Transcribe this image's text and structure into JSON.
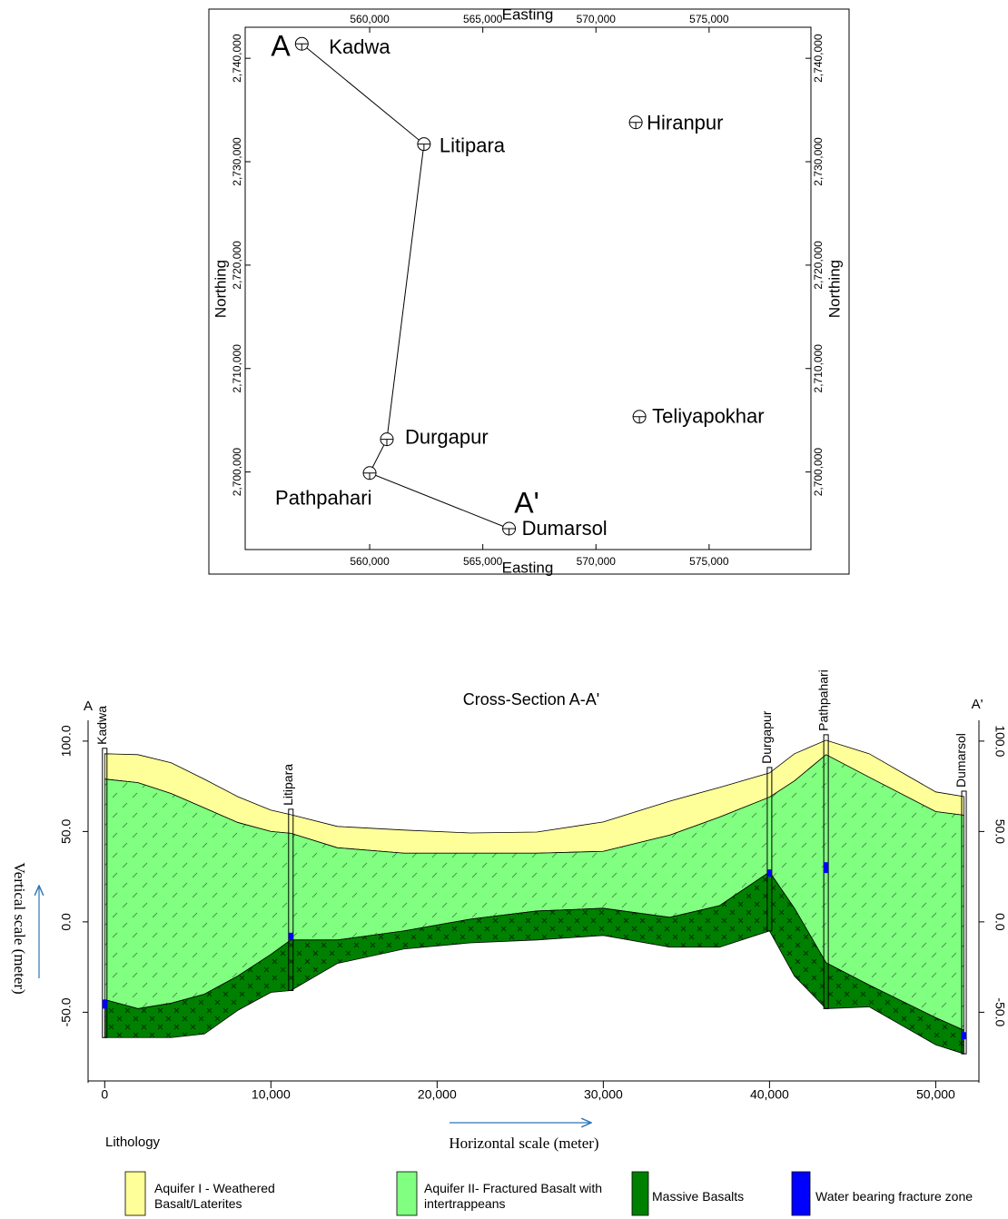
{
  "chart_data": [
    {
      "type": "map",
      "xlabel": "Easting",
      "ylabel": "Northing",
      "xlim": [
        554500,
        579500
      ],
      "ylim": [
        2692500,
        2743000
      ],
      "xticks": [
        {
          "value": 560000,
          "label": "560,000"
        },
        {
          "value": 565000,
          "label": "565,000"
        },
        {
          "value": 570000,
          "label": "570,000"
        },
        {
          "value": 575000,
          "label": "575,000"
        }
      ],
      "yticks": [
        {
          "value": 2700000,
          "label": "2,700,000"
        },
        {
          "value": 2710000,
          "label": "2,710,000"
        },
        {
          "value": 2720000,
          "label": "2,720,000"
        },
        {
          "value": 2730000,
          "label": "2,730,000"
        },
        {
          "value": 2740000,
          "label": "2,740,000"
        }
      ],
      "points": {
        "labels": [
          "Kadwa",
          "Litipara",
          "Hiranpur",
          "Durgapur",
          "Pathpahari",
          "Teliyapokhar",
          "Dumarsol"
        ],
        "x": [
          557000,
          562400,
          571760,
          560760,
          560000,
          571920,
          566160
        ],
        "y": [
          2741400,
          2731700,
          2733800,
          2703160,
          2699900,
          2705340,
          2694520
        ]
      },
      "section_line": {
        "x": [
          557000,
          562400,
          560760,
          560000,
          566160
        ],
        "y": [
          2741400,
          2731700,
          2703160,
          2699900,
          2694520
        ]
      },
      "annotations": [
        "A",
        "A'"
      ]
    },
    {
      "type": "cross-section",
      "title": "Cross-Section A-A'",
      "xlabel": "Horizontal scale (meter)",
      "ylabel": "Vertical scale (meter)",
      "xlim": [
        -1000,
        52600
      ],
      "ylim": [
        -89,
        111.5
      ],
      "xticks": [
        0,
        {
          "value": 10000,
          "label": "10,000"
        },
        {
          "value": 20000,
          "label": "20,000"
        },
        {
          "value": 30000,
          "label": "30,000"
        },
        {
          "value": 40000,
          "label": "40,000"
        },
        {
          "value": 50000,
          "label": "50,000"
        }
      ],
      "yticks": [
        {
          "value": -50,
          "label": "-50.0"
        },
        {
          "value": 0,
          "label": "0.0"
        },
        {
          "value": 50,
          "label": "50.0"
        },
        {
          "value": 100,
          "label": "100.0"
        }
      ],
      "annotations": [
        "A",
        "A'"
      ],
      "legend_title": "Lithology",
      "x": [
        0,
        2000,
        4000,
        6000,
        8000,
        10000,
        11200,
        14000,
        18000,
        22000,
        26000,
        30000,
        34000,
        37000,
        40000,
        41500,
        43400,
        46000,
        50000,
        51700
      ],
      "series": [
        {
          "name": "Aquifer I - Weathered Basalt/Laterites",
          "color": "#ffff99",
          "top": [
            93,
            92.5,
            88,
            78.9,
            69.3,
            61.8,
            59.3,
            52.8,
            50.8,
            49.2,
            49.7,
            55.3,
            66.8,
            74.4,
            82.4,
            93,
            100.5,
            93,
            71.9,
            69.3
          ],
          "bottom": [
            79,
            77,
            71,
            63,
            55,
            50,
            49,
            41,
            38,
            38,
            38,
            39,
            48,
            58,
            69,
            78,
            92.5,
            80,
            61,
            59
          ]
        },
        {
          "name": "Aquifer II- Fractured Basalt with intertrappeans",
          "color": "#80ff80",
          "top": [
            79,
            77,
            71,
            63,
            55,
            50,
            49,
            41,
            38,
            38,
            38,
            39,
            48,
            58,
            69,
            78,
            92.5,
            80,
            61,
            59
          ],
          "bottom": [
            -43,
            -48,
            -45,
            -40,
            -30,
            -18,
            -10,
            -10,
            -5,
            1.5,
            6,
            7.5,
            2.5,
            9,
            27.6,
            7.5,
            -22.6,
            -35,
            -53,
            -60
          ]
        },
        {
          "name": "Massive Basalts",
          "color": "#008000",
          "top": [
            -43,
            -48,
            -45,
            -40,
            -30,
            -18,
            -10,
            -10,
            -5,
            1.5,
            6,
            7.5,
            2.5,
            9,
            27.6,
            7.5,
            -22.6,
            -35,
            -53,
            -60
          ],
          "bottom": [
            -64,
            -64,
            -64,
            -62,
            -49,
            -39,
            -38,
            -23,
            -15,
            -11.6,
            -10,
            -7.5,
            -14,
            -14,
            -5,
            -30,
            -48,
            -47,
            -68,
            -73
          ]
        },
        {
          "name": "Water bearing fracture zone",
          "color": "#0000ff",
          "x": [
            0,
            11200,
            40000,
            43400,
            51700
          ],
          "top": [
            -43,
            -6,
            29,
            33,
            -61
          ],
          "bottom": [
            -48,
            -10,
            25,
            27,
            -65
          ]
        }
      ],
      "wells": {
        "labels": [
          "Kadwa",
          "Litipara",
          "Durgapur",
          "Pathpahari",
          "Dumarsol"
        ],
        "x": [
          0,
          11200,
          40000,
          43400,
          51700
        ]
      }
    }
  ]
}
